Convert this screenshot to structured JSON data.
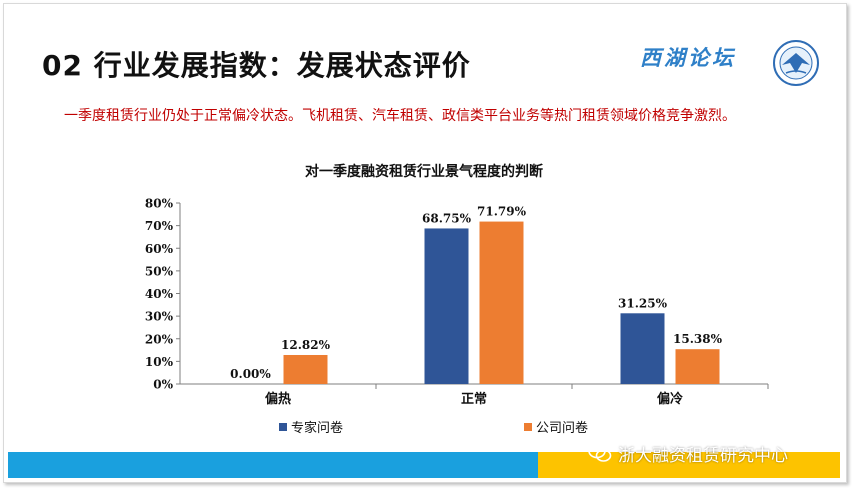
{
  "header": {
    "title": "02 行业发展指数：发展状态评价",
    "brand": "西湖论坛",
    "subtitle": "一季度租赁行业仍处于正常偏冷状态。飞机租赁、汽车租赁、政信类平台业务等热门租赁领域价格竞争激烈。"
  },
  "watermark": "浙大融资租赁研究中心",
  "colors": {
    "expert": "#2f5597",
    "company": "#ed7d31",
    "title_red": "#c00000",
    "bar_blue": "#1aa0de",
    "bar_yellow": "#fdc300"
  },
  "chart_data": {
    "type": "bar",
    "title": "对一季度融资租赁行业景气程度的判断",
    "categories": [
      "偏热",
      "正常",
      "偏冷"
    ],
    "series": [
      {
        "name": "专家问卷",
        "values": [
          0.0,
          68.75,
          31.25
        ],
        "labels": [
          "0.00%",
          "68.75%",
          "31.25%"
        ],
        "color": "#2f5597"
      },
      {
        "name": "公司问卷",
        "values": [
          12.82,
          71.79,
          15.38
        ],
        "labels": [
          "12.82%",
          "71.79%",
          "15.38%"
        ],
        "color": "#ed7d31"
      }
    ],
    "ylim": [
      0,
      80
    ],
    "yticks": [
      0,
      10,
      20,
      30,
      40,
      50,
      60,
      70,
      80
    ],
    "ytick_labels": [
      "0%",
      "10%",
      "20%",
      "30%",
      "40%",
      "50%",
      "60%",
      "70%",
      "80%"
    ],
    "xlabel": "",
    "ylabel": "",
    "grid": false,
    "legend_position": "bottom"
  }
}
